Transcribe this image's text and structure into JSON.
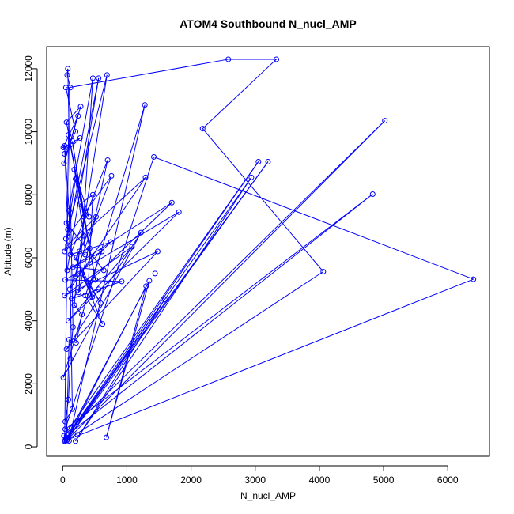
{
  "chart_data": {
    "type": "line",
    "title": "ATOM4 Southbound N_nucl_AMP",
    "xlabel": "N_nucl_AMP",
    "ylabel": "Altitude (m)",
    "xlim": [
      -250,
      6650
    ],
    "ylim": [
      -300,
      12700
    ],
    "x_ticks": [
      0,
      1000,
      2000,
      3000,
      4000,
      5000,
      6000
    ],
    "y_ticks": [
      0,
      2000,
      4000,
      6000,
      8000,
      10000,
      12000
    ],
    "grid": false,
    "point_style": "open-circle",
    "colors": {
      "series": "#0000ff",
      "axes": "#000000"
    },
    "series": [
      {
        "points": [
          [
            30,
            180
          ],
          [
            60,
            200
          ],
          [
            100,
            190
          ],
          [
            20,
            350
          ],
          [
            50,
            260
          ],
          [
            200,
            180
          ],
          [
            90,
            400
          ],
          [
            40,
            560
          ],
          [
            70,
            220
          ],
          [
            680,
            300
          ],
          [
            230,
            380
          ],
          [
            60,
            200
          ],
          [
            140,
            600
          ],
          [
            10,
            2200
          ],
          [
            60,
            3100
          ],
          [
            30,
            4800
          ],
          [
            90,
            4000
          ],
          [
            40,
            5300
          ],
          [
            140,
            4700
          ],
          [
            70,
            5600
          ],
          [
            30,
            6200
          ],
          [
            110,
            5000
          ],
          [
            50,
            6600
          ],
          [
            200,
            5400
          ],
          [
            120,
            6100
          ],
          [
            250,
            4900
          ],
          [
            60,
            7100
          ],
          [
            160,
            5700
          ],
          [
            350,
            4800
          ],
          [
            300,
            5500
          ],
          [
            80,
            6400
          ],
          [
            210,
            6000
          ],
          [
            400,
            5200
          ],
          [
            460,
            4750
          ],
          [
            590,
            4560
          ],
          [
            620,
            3900
          ],
          [
            560,
            5000
          ],
          [
            640,
            5600
          ],
          [
            610,
            6200
          ],
          [
            520,
            7300
          ],
          [
            470,
            8000
          ],
          [
            410,
            7300
          ],
          [
            330,
            7300
          ],
          [
            420,
            6300
          ],
          [
            510,
            5300
          ],
          [
            270,
            7700
          ],
          [
            180,
            8800
          ],
          [
            150,
            9700
          ],
          [
            90,
            9900
          ],
          [
            60,
            10300
          ],
          [
            20,
            9000
          ],
          [
            10,
            9500
          ],
          [
            30,
            9300
          ],
          [
            50,
            11400
          ],
          [
            70,
            11800
          ],
          [
            80,
            12000
          ],
          [
            120,
            11400
          ],
          [
            200,
            10000
          ],
          [
            240,
            10500
          ],
          [
            270,
            9800
          ],
          [
            280,
            10800
          ],
          [
            470,
            11700
          ],
          [
            560,
            11700
          ],
          [
            700,
            9100
          ],
          [
            690,
            11800
          ],
          [
            760,
            8600
          ],
          [
            750,
            6500
          ],
          [
            920,
            5250
          ],
          [
            1080,
            6350
          ],
          [
            1300,
            5100
          ],
          [
            1350,
            5270
          ],
          [
            1440,
            5500
          ],
          [
            1480,
            6200
          ],
          [
            1590,
            4680
          ],
          [
            1220,
            6800
          ],
          [
            1280,
            10850
          ],
          [
            1290,
            8550
          ],
          [
            1420,
            9200
          ],
          [
            1700,
            7750
          ],
          [
            1810,
            7450
          ],
          [
            2180,
            10100
          ],
          [
            2580,
            12300
          ],
          [
            3330,
            12300
          ],
          [
            3050,
            9050
          ],
          [
            3200,
            9050
          ],
          [
            2940,
            8550
          ],
          [
            4060,
            5560
          ],
          [
            4830,
            8020
          ],
          [
            5020,
            10350
          ],
          [
            6400,
            5320
          ],
          [
            160,
            3800
          ],
          [
            120,
            2800
          ],
          [
            90,
            1500
          ],
          [
            40,
            800
          ],
          [
            150,
            1200
          ],
          [
            100,
            7500
          ],
          [
            30,
            9550
          ],
          [
            80,
            6900
          ],
          [
            200,
            8500
          ],
          [
            330,
            6700
          ],
          [
            350,
            6100
          ],
          [
            260,
            6200
          ],
          [
            180,
            4500
          ],
          [
            300,
            4200
          ],
          [
            210,
            3300
          ],
          [
            100,
            3400
          ],
          [
            60,
            300
          ],
          [
            40,
            200
          ]
        ],
        "path": [
          [
            30,
            180
          ],
          [
            100,
            11400
          ],
          [
            2580,
            12300
          ],
          [
            3330,
            12300
          ],
          [
            2180,
            10100
          ],
          [
            4060,
            5560
          ],
          [
            60,
            200
          ],
          [
            5020,
            10350
          ],
          [
            20,
            350
          ],
          [
            3050,
            9050
          ],
          [
            90,
            400
          ],
          [
            4830,
            8020
          ],
          [
            40,
            560
          ],
          [
            1420,
            9200
          ],
          [
            6400,
            5320
          ],
          [
            70,
            220
          ],
          [
            3200,
            9050
          ],
          [
            50,
            260
          ],
          [
            2940,
            8550
          ],
          [
            200,
            180
          ],
          [
            1590,
            4680
          ],
          [
            60,
            200
          ],
          [
            1300,
            5100
          ],
          [
            680,
            300
          ],
          [
            1350,
            5270
          ],
          [
            140,
            600
          ],
          [
            1280,
            10850
          ],
          [
            10,
            2200
          ],
          [
            1220,
            6800
          ],
          [
            60,
            3100
          ],
          [
            1480,
            6200
          ],
          [
            30,
            4800
          ],
          [
            1080,
            6350
          ],
          [
            90,
            4000
          ],
          [
            1810,
            7450
          ],
          [
            40,
            5300
          ],
          [
            920,
            5250
          ],
          [
            140,
            4700
          ],
          [
            1700,
            7750
          ],
          [
            70,
            5600
          ],
          [
            560,
            11700
          ],
          [
            30,
            6200
          ],
          [
            1290,
            8550
          ],
          [
            110,
            5000
          ],
          [
            760,
            8600
          ],
          [
            50,
            6600
          ],
          [
            690,
            11800
          ],
          [
            200,
            5400
          ],
          [
            750,
            6500
          ],
          [
            120,
            6100
          ],
          [
            700,
            9100
          ],
          [
            250,
            4900
          ],
          [
            470,
            11700
          ],
          [
            60,
            7100
          ],
          [
            640,
            5600
          ],
          [
            160,
            5700
          ],
          [
            610,
            6200
          ],
          [
            350,
            4800
          ],
          [
            620,
            3900
          ],
          [
            300,
            5500
          ],
          [
            590,
            4560
          ],
          [
            80,
            6400
          ],
          [
            520,
            7300
          ],
          [
            210,
            6000
          ],
          [
            460,
            4750
          ],
          [
            400,
            5200
          ],
          [
            470,
            8000
          ],
          [
            270,
            7700
          ],
          [
            410,
            7300
          ],
          [
            180,
            8800
          ],
          [
            330,
            7300
          ],
          [
            150,
            9700
          ],
          [
            420,
            6300
          ],
          [
            90,
            9900
          ],
          [
            510,
            5300
          ],
          [
            60,
            10300
          ],
          [
            280,
            10800
          ],
          [
            20,
            9000
          ],
          [
            240,
            10500
          ],
          [
            10,
            9500
          ],
          [
            270,
            9800
          ],
          [
            30,
            9300
          ],
          [
            200,
            10000
          ],
          [
            50,
            11400
          ],
          [
            120,
            11400
          ],
          [
            70,
            11800
          ],
          [
            80,
            12000
          ],
          [
            160,
            3800
          ],
          [
            120,
            2800
          ],
          [
            90,
            1500
          ],
          [
            40,
            800
          ],
          [
            150,
            1200
          ],
          [
            100,
            7500
          ],
          [
            30,
            9550
          ],
          [
            80,
            6900
          ],
          [
            200,
            8500
          ],
          [
            330,
            6700
          ],
          [
            350,
            6100
          ],
          [
            260,
            6200
          ],
          [
            180,
            4500
          ],
          [
            300,
            4200
          ],
          [
            210,
            3300
          ],
          [
            100,
            3400
          ],
          [
            60,
            300
          ],
          [
            40,
            200
          ]
        ]
      }
    ]
  }
}
